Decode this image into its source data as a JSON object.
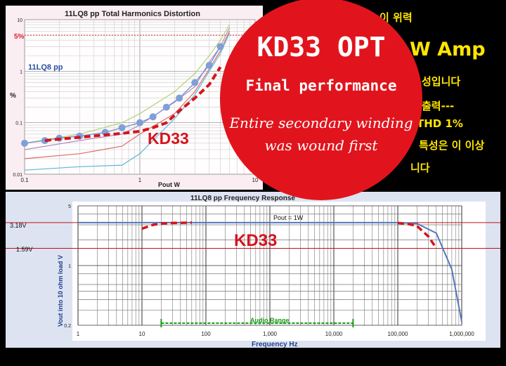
{
  "thd_chart": {
    "title": "11LQ8 pp   Total Harmonics Distortion",
    "legend": "11LQ8 pp",
    "ylabel": "%",
    "xlabel": "Pout  W",
    "marker_label": "5%",
    "kd33_label": "KD33",
    "x_ticks": [
      "0.1",
      "1",
      "10"
    ],
    "y_ticks": [
      "10",
      "1",
      "0.1",
      "0.01"
    ]
  },
  "freq_chart": {
    "title": "11LQ8 pp    Frequency Response",
    "ylabel": "Vout into 10 ohm load  V",
    "xlabel": "Frequency  Hz",
    "pout_label": "Pout = 1W",
    "audio_range": "Audio Range",
    "kd33_label": "KD33",
    "ref_labels": [
      "3.18V",
      "1.59V"
    ],
    "x_ticks": [
      "1",
      "10",
      "100",
      "1,000",
      "10,000",
      "100,000",
      "1,000,000"
    ],
    "y_ticks": [
      "5",
      "1",
      "0.2"
    ]
  },
  "overlay": {
    "title": "KD33 OPT",
    "subtitle": "Final performance",
    "note_line1": "Entire secondary winding",
    "note_line2": "was wound first"
  },
  "korean_text": {
    "line1": "이 위력",
    "line2": "W Amp",
    "line3": "성입니다",
    "line4": "출력---",
    "line5": "THD 1%",
    "line6": "특성은 이 이상",
    "line7": "니다"
  },
  "colors": {
    "red": "#e1141d",
    "kd33_red": "#d5141d",
    "blue_dots": "#7f9fd6",
    "yellow": "#ffe600",
    "green": "#1a9a1a"
  },
  "chart_data": [
    {
      "type": "line",
      "title": "11LQ8 pp   Total Harmonics Distortion",
      "xlabel": "Pout  W",
      "ylabel": "%",
      "x_scale": "log",
      "y_scale": "log",
      "xlim": [
        0.1,
        10
      ],
      "ylim": [
        0.01,
        10
      ],
      "grid": true,
      "series": [
        {
          "name": "11LQ8 pp",
          "x": [
            0.1,
            0.15,
            0.2,
            0.3,
            0.5,
            0.7,
            1.0,
            1.3,
            1.7,
            2.2,
            3.0,
            4.0,
            5.0
          ],
          "y": [
            0.04,
            0.045,
            0.05,
            0.055,
            0.065,
            0.08,
            0.1,
            0.13,
            0.2,
            0.3,
            0.6,
            1.3,
            3.0
          ]
        },
        {
          "name": "KD33",
          "x": [
            0.15,
            0.2,
            0.3,
            0.5,
            0.7,
            1.0,
            1.3,
            1.7,
            2.2,
            3.0,
            4.0,
            5.0
          ],
          "y": [
            0.045,
            0.048,
            0.052,
            0.058,
            0.062,
            0.068,
            0.08,
            0.1,
            0.17,
            0.3,
            0.55,
            1.2
          ]
        },
        {
          "x": [
            0.1,
            0.3,
            0.7,
            1.0,
            2.0,
            3.0,
            4.0,
            5.0,
            6.0
          ],
          "y": [
            0.04,
            0.06,
            0.1,
            0.15,
            0.4,
            0.9,
            2.0,
            4.0,
            8.0
          ]
        },
        {
          "x": [
            0.1,
            0.3,
            0.7,
            1.0,
            2.0,
            3.0,
            4.0,
            5.0,
            6.0
          ],
          "y": [
            0.03,
            0.045,
            0.06,
            0.09,
            0.25,
            0.5,
            1.5,
            3.0,
            7.0
          ]
        },
        {
          "x": [
            0.1,
            0.3,
            0.7,
            1.0,
            2.0,
            3.0,
            4.0,
            5.0,
            6.0
          ],
          "y": [
            0.02,
            0.025,
            0.035,
            0.06,
            0.15,
            0.4,
            1.1,
            2.5,
            6.0
          ]
        },
        {
          "x": [
            0.1,
            0.3,
            0.7,
            1.0,
            2.0,
            3.0,
            4.0,
            5.0,
            6.0
          ],
          "y": [
            0.012,
            0.014,
            0.015,
            0.025,
            0.12,
            0.35,
            1.0,
            2.2,
            5.5
          ]
        }
      ],
      "annotations": [
        {
          "y": 5,
          "text": "5%"
        }
      ]
    },
    {
      "type": "line",
      "title": "11LQ8 pp    Frequency Response",
      "xlabel": "Frequency  Hz",
      "ylabel": "Vout into 10 ohm load  V",
      "x_scale": "log",
      "y_scale": "log",
      "xlim": [
        1,
        1000000
      ],
      "ylim": [
        0.2,
        5
      ],
      "grid": true,
      "series": [
        {
          "x": [
            1,
            10,
            100,
            1000,
            10000,
            50000,
            100000,
            200000,
            400000,
            700000,
            1000000
          ],
          "y": [
            3.18,
            3.18,
            3.18,
            3.18,
            3.18,
            3.18,
            3.18,
            3.1,
            2.4,
            0.9,
            0.22
          ]
        },
        {
          "name": "KD33",
          "x": [
            10,
            15,
            20,
            30,
            60,
            100000,
            150000,
            200000,
            300000,
            400000
          ],
          "y": [
            2.7,
            3.0,
            3.1,
            3.15,
            3.18,
            3.15,
            3.05,
            2.9,
            2.2,
            1.6
          ]
        }
      ],
      "annotations": [
        {
          "y": 3.18,
          "text": "3.18V"
        },
        {
          "y": 1.59,
          "text": "1.59V"
        },
        {
          "text": "Pout = 1W"
        },
        {
          "x_range": [
            20,
            20000
          ],
          "text": "Audio Range"
        }
      ]
    }
  ]
}
